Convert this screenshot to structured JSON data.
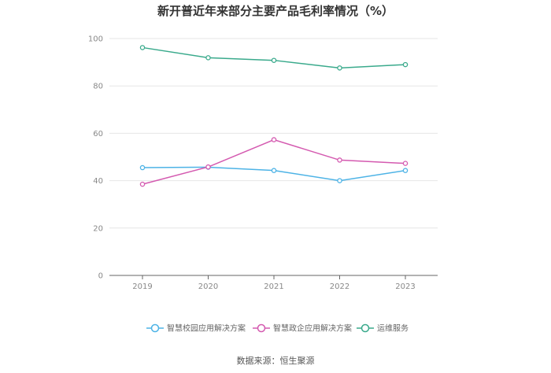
{
  "chart_data": {
    "type": "line",
    "title": "新开普近年来部分主要产品毛利率情况（%）",
    "xlabel": "",
    "ylabel": "",
    "categories": [
      "2019",
      "2020",
      "2021",
      "2022",
      "2023"
    ],
    "ylim": [
      0,
      100
    ],
    "yticks": [
      0,
      20,
      40,
      60,
      80,
      100
    ],
    "grid": true,
    "legend_position": "bottom",
    "series": [
      {
        "name": "智慧校园应用解决方案",
        "color": "#4db3e6",
        "values": [
          45.5,
          45.7,
          44.3,
          40.0,
          44.3
        ]
      },
      {
        "name": "智慧政企应用解决方案",
        "color": "#d45ab0",
        "values": [
          38.5,
          45.8,
          57.3,
          48.7,
          47.3
        ]
      },
      {
        "name": "运维服务",
        "color": "#3aaa8c",
        "values": [
          96.2,
          91.9,
          90.8,
          87.6,
          89.0
        ]
      }
    ]
  },
  "source": "数据来源：恒生聚源"
}
